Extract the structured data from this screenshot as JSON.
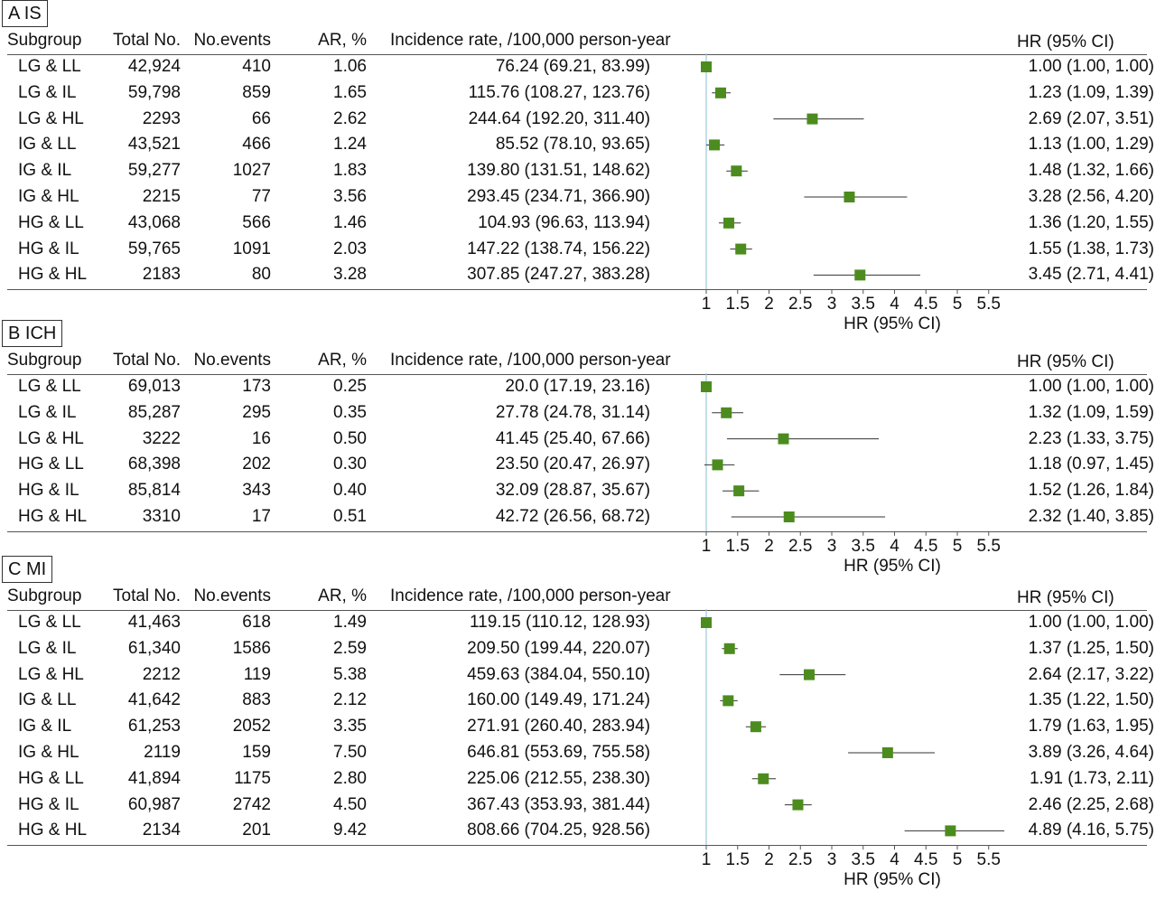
{
  "columns": {
    "subgroup": "Subgroup",
    "total": "Total No.",
    "events": "No.events",
    "ar": "AR, %",
    "incidence": "Incidence rate, /100,000 person-year",
    "hr": "HR (95% CI)"
  },
  "colors": {
    "marker": "#4c8c1e",
    "refline": "#9cc8d8",
    "ci": "#333333"
  },
  "chart_data": [
    {
      "type": "forest",
      "panel_label": "A  IS",
      "xlabel": "HR (95% CI)",
      "reference": 1,
      "ticks": [
        "1",
        "1.5",
        "2",
        "2.5",
        "3",
        "3.5",
        "4",
        "4.5",
        "5",
        "5.5"
      ],
      "rows": [
        {
          "subgroup": "LG & LL",
          "total": "42,924",
          "events": "410",
          "ar": "1.06",
          "incidence": "76.24 (69.21, 83.99)",
          "hr_text": "1.00 (1.00, 1.00)",
          "hr": 1.0,
          "lo": 1.0,
          "hi": 1.0
        },
        {
          "subgroup": "LG & IL",
          "total": "59,798",
          "events": "859",
          "ar": "1.65",
          "incidence": "115.76 (108.27, 123.76)",
          "hr_text": "1.23 (1.09, 1.39)",
          "hr": 1.23,
          "lo": 1.09,
          "hi": 1.39
        },
        {
          "subgroup": "LG & HL",
          "total": "2293",
          "events": "66",
          "ar": "2.62",
          "incidence": "244.64 (192.20, 311.40)",
          "hr_text": "2.69 (2.07, 3.51)",
          "hr": 2.69,
          "lo": 2.07,
          "hi": 3.51
        },
        {
          "subgroup": "IG & LL",
          "total": "43,521",
          "events": "466",
          "ar": "1.24",
          "incidence": "85.52 (78.10, 93.65)",
          "hr_text": "1.13 (1.00, 1.29)",
          "hr": 1.13,
          "lo": 1.0,
          "hi": 1.29
        },
        {
          "subgroup": "IG & IL",
          "total": "59,277",
          "events": "1027",
          "ar": "1.83",
          "incidence": "139.80 (131.51, 148.62)",
          "hr_text": "1.48 (1.32, 1.66)",
          "hr": 1.48,
          "lo": 1.32,
          "hi": 1.66
        },
        {
          "subgroup": "IG & HL",
          "total": "2215",
          "events": "77",
          "ar": "3.56",
          "incidence": "293.45 (234.71, 366.90)",
          "hr_text": "3.28 (2.56, 4.20)",
          "hr": 3.28,
          "lo": 2.56,
          "hi": 4.2
        },
        {
          "subgroup": "HG & LL",
          "total": "43,068",
          "events": "566",
          "ar": "1.46",
          "incidence": "104.93 (96.63, 113.94)",
          "hr_text": "1.36 (1.20, 1.55)",
          "hr": 1.36,
          "lo": 1.2,
          "hi": 1.55
        },
        {
          "subgroup": "HG & IL",
          "total": "59,765",
          "events": "1091",
          "ar": "2.03",
          "incidence": "147.22 (138.74, 156.22)",
          "hr_text": "1.55 (1.38, 1.73)",
          "hr": 1.55,
          "lo": 1.38,
          "hi": 1.73
        },
        {
          "subgroup": "HG & HL",
          "total": "2183",
          "events": "80",
          "ar": "3.28",
          "incidence": "307.85 (247.27, 383.28)",
          "hr_text": "3.45 (2.71, 4.41)",
          "hr": 3.45,
          "lo": 2.71,
          "hi": 4.41
        }
      ]
    },
    {
      "type": "forest",
      "panel_label": "B  ICH",
      "xlabel": "HR (95% CI)",
      "reference": 1,
      "ticks": [
        "1",
        "1.5",
        "2",
        "2.5",
        "3",
        "3.5",
        "4",
        "4.5",
        "5",
        "5.5"
      ],
      "rows": [
        {
          "subgroup": "LG & LL",
          "total": "69,013",
          "events": "173",
          "ar": "0.25",
          "incidence": "20.0 (17.19, 23.16)",
          "hr_text": "1.00 (1.00, 1.00)",
          "hr": 1.0,
          "lo": 1.0,
          "hi": 1.0
        },
        {
          "subgroup": "LG & IL",
          "total": "85,287",
          "events": "295",
          "ar": "0.35",
          "incidence": "27.78 (24.78, 31.14)",
          "hr_text": "1.32 (1.09, 1.59)",
          "hr": 1.32,
          "lo": 1.09,
          "hi": 1.59
        },
        {
          "subgroup": "LG & HL",
          "total": "3222",
          "events": "16",
          "ar": "0.50",
          "incidence": "41.45 (25.40, 67.66)",
          "hr_text": "2.23 (1.33, 3.75)",
          "hr": 2.23,
          "lo": 1.33,
          "hi": 3.75
        },
        {
          "subgroup": "HG & LL",
          "total": "68,398",
          "events": "202",
          "ar": "0.30",
          "incidence": "23.50 (20.47, 26.97)",
          "hr_text": "1.18 (0.97, 1.45)",
          "hr": 1.18,
          "lo": 0.97,
          "hi": 1.45
        },
        {
          "subgroup": "HG & IL",
          "total": "85,814",
          "events": "343",
          "ar": "0.40",
          "incidence": "32.09 (28.87, 35.67)",
          "hr_text": "1.52 (1.26, 1.84)",
          "hr": 1.52,
          "lo": 1.26,
          "hi": 1.84
        },
        {
          "subgroup": "HG & HL",
          "total": "3310",
          "events": "17",
          "ar": "0.51",
          "incidence": "42.72 (26.56, 68.72)",
          "hr_text": "2.32 (1.40, 3.85)",
          "hr": 2.32,
          "lo": 1.4,
          "hi": 3.85
        }
      ]
    },
    {
      "type": "forest",
      "panel_label": "C  MI",
      "xlabel": "HR (95% CI)",
      "reference": 1,
      "ticks": [
        "1",
        "1.5",
        "2",
        "2.5",
        "3",
        "3.5",
        "4",
        "4.5",
        "5",
        "5.5"
      ],
      "rows": [
        {
          "subgroup": "LG & LL",
          "total": "41,463",
          "events": "618",
          "ar": "1.49",
          "incidence": "119.15 (110.12, 128.93)",
          "hr_text": "1.00 (1.00, 1.00)",
          "hr": 1.0,
          "lo": 1.0,
          "hi": 1.0
        },
        {
          "subgroup": "LG & IL",
          "total": "61,340",
          "events": "1586",
          "ar": "2.59",
          "incidence": "209.50 (199.44, 220.07)",
          "hr_text": "1.37 (1.25, 1.50)",
          "hr": 1.37,
          "lo": 1.25,
          "hi": 1.5
        },
        {
          "subgroup": "LG & HL",
          "total": "2212",
          "events": "119",
          "ar": "5.38",
          "incidence": "459.63 (384.04, 550.10)",
          "hr_text": "2.64 (2.17, 3.22)",
          "hr": 2.64,
          "lo": 2.17,
          "hi": 3.22
        },
        {
          "subgroup": "IG & LL",
          "total": "41,642",
          "events": "883",
          "ar": "2.12",
          "incidence": "160.00 (149.49, 171.24)",
          "hr_text": "1.35 (1.22, 1.50)",
          "hr": 1.35,
          "lo": 1.22,
          "hi": 1.5
        },
        {
          "subgroup": "IG & IL",
          "total": "61,253",
          "events": "2052",
          "ar": "3.35",
          "incidence": "271.91 (260.40, 283.94)",
          "hr_text": "1.79 (1.63, 1.95)",
          "hr": 1.79,
          "lo": 1.63,
          "hi": 1.95
        },
        {
          "subgroup": "IG & HL",
          "total": "2119",
          "events": "159",
          "ar": "7.50",
          "incidence": "646.81 (553.69, 755.58)",
          "hr_text": "3.89 (3.26, 4.64)",
          "hr": 3.89,
          "lo": 3.26,
          "hi": 4.64
        },
        {
          "subgroup": "HG & LL",
          "total": "41,894",
          "events": "1175",
          "ar": "2.80",
          "incidence": "225.06 (212.55, 238.30)",
          "hr_text": "1.91 (1.73, 2.11)",
          "hr": 1.91,
          "lo": 1.73,
          "hi": 2.11
        },
        {
          "subgroup": "HG & IL",
          "total": "60,987",
          "events": "2742",
          "ar": "4.50",
          "incidence": "367.43 (353.93, 381.44)",
          "hr_text": "2.46 (2.25, 2.68)",
          "hr": 2.46,
          "lo": 2.25,
          "hi": 2.68
        },
        {
          "subgroup": "HG & HL",
          "total": "2134",
          "events": "201",
          "ar": "9.42",
          "incidence": "808.66 (704.25, 928.56)",
          "hr_text": "4.89 (4.16, 5.75)",
          "hr": 4.89,
          "lo": 4.16,
          "hi": 5.75
        }
      ]
    }
  ]
}
